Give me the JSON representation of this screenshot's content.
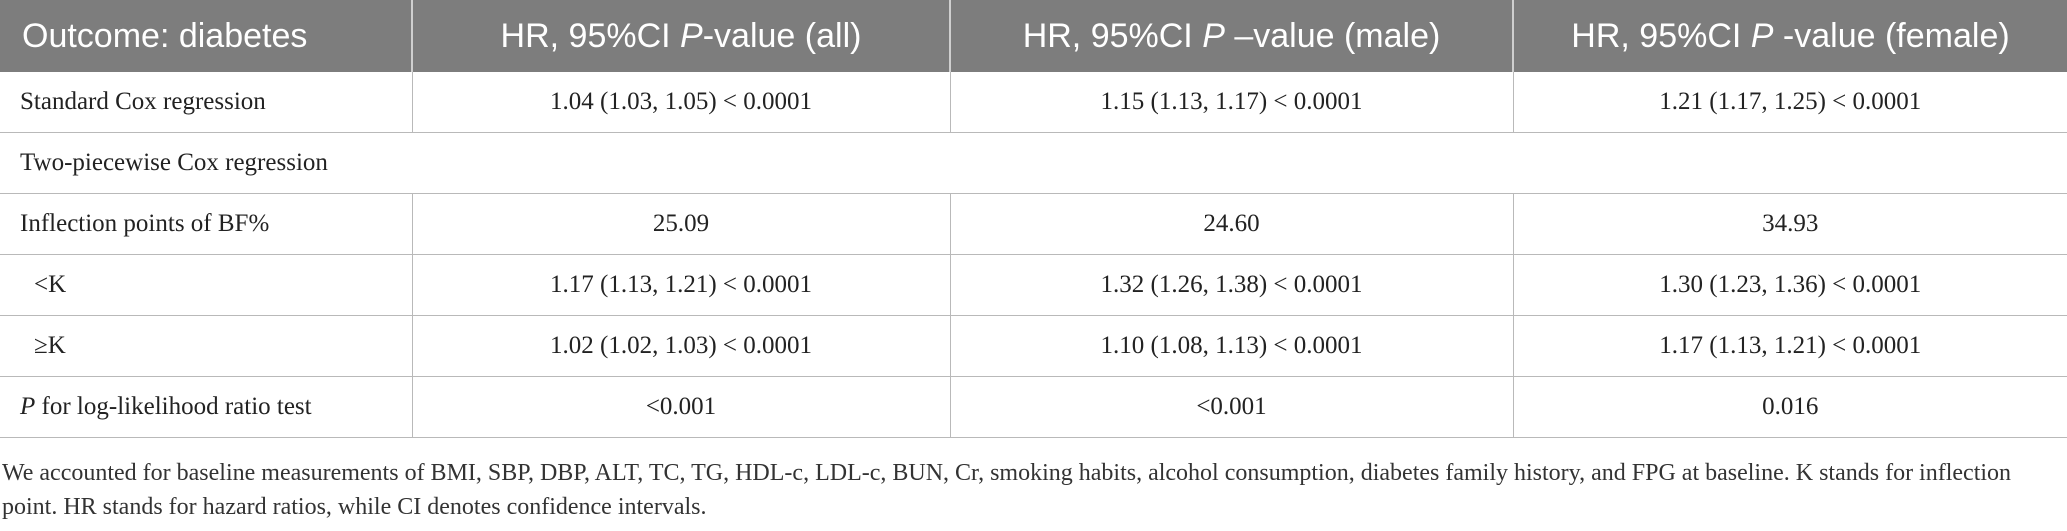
{
  "header": {
    "col0": "Outcome: diabetes",
    "col1_pre": "HR, 95%CI ",
    "col1_p": "P",
    "col1_post": "-value (all)",
    "col2_pre": "HR, 95%CI ",
    "col2_p": "P",
    "col2_post": " –value (male)",
    "col3_pre": "HR, 95%CI ",
    "col3_p": "P",
    "col3_post": " -value (female)"
  },
  "rows": {
    "standard": {
      "label": "Standard Cox regression",
      "all": "1.04 (1.03, 1.05) < 0.0001",
      "male": "1.15 (1.13, 1.17) < 0.0001",
      "female": "1.21 (1.17, 1.25) < 0.0001"
    },
    "piecewise": {
      "label": "Two-piecewise Cox regression"
    },
    "inflection": {
      "label": "Inflection points of BF%",
      "all": "25.09",
      "male": "24.60",
      "female": "34.93"
    },
    "below_k": {
      "label": "<K",
      "all": "1.17 (1.13, 1.21) < 0.0001",
      "male": "1.32 (1.26, 1.38) < 0.0001",
      "female": "1.30 (1.23, 1.36) < 0.0001"
    },
    "above_k": {
      "label": "≥K",
      "all": "1.02 (1.02, 1.03) < 0.0001",
      "male": "1.10 (1.08, 1.13) < 0.0001",
      "female": "1.17 (1.13, 1.21) < 0.0001"
    },
    "lrt": {
      "label_p": "P",
      "label_rest": " for log-likelihood ratio test",
      "all": "<0.001",
      "male": "<0.001",
      "female": "0.016"
    }
  },
  "footnote": "We accounted for baseline measurements of BMI, SBP, DBP, ALT, TC, TG, HDL-c, LDL-c, BUN, Cr, smoking habits, alcohol consumption, diabetes family history, and FPG at baseline. K stands for inflection point. HR stands for hazard ratios, while CI denotes confidence intervals."
}
